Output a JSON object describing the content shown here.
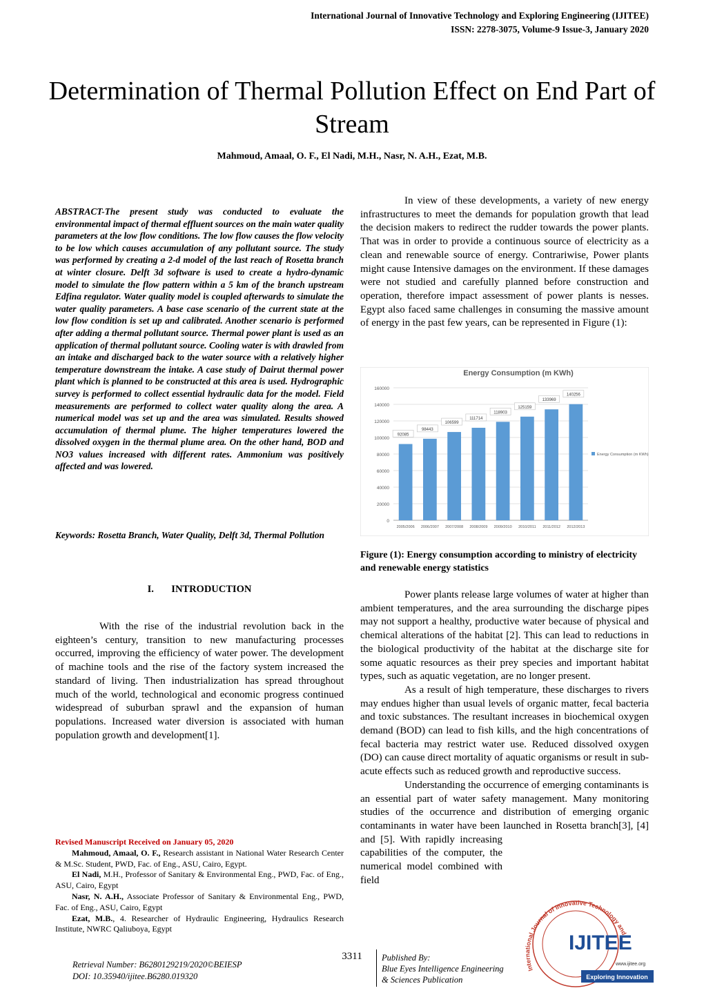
{
  "header": {
    "journal": "International Journal of Innovative Technology and Exploring Engineering (IJITEE)",
    "issn": "ISSN: 2278-3075, Volume-9 Issue-3, January 2020"
  },
  "title": "Determination of Thermal Pollution Effect on End Part of Stream",
  "authors": "Mahmoud, Amaal, O. F., El Nadi, M.H., Nasr, N. A.H., Ezat, M.B.",
  "abstract": "ABSTRACT-The present study was conducted to evaluate the environmental impact of thermal effluent sources on the main water quality parameters at the low flow conditions. The low flow causes the flow velocity to be low which causes accumulation of any pollutant source. The study was performed by creating a 2-d model of the last reach of Rosetta branch at winter closure. Delft 3d software is used to create a hydro-dynamic model to simulate the flow pattern within a 5 km of the branch upstream Edfina regulator. Water quality model is coupled afterwards to simulate the water quality parameters. A base case scenario of the current state at the low flow condition is set up and calibrated. Another scenario is performed after adding a thermal pollutant source. Thermal power plant is used as an application of thermal pollutant source. Cooling water is with drawled from an intake and discharged back to the water source with a relatively higher temperature downstream the intake. A case study of Dairut thermal power plant which is planned to be constructed at this area is used. Hydrographic survey is performed to collect essential hydraulic data for the model. Field measurements are performed to collect water quality along the area. A numerical model was set up and the area was simulated. Results showed accumulation of thermal plume. The higher temperatures lowered the dissolved oxygen in the thermal plume area. On the other hand, BOD and NO3 values increased with different rates. Ammonium was positively affected and was lowered.",
  "keywords": "Keywords: Rosetta Branch, Water Quality, Delft 3d, Thermal Pollution",
  "section_heading": "I.       INTRODUCTION",
  "intro": "With the rise of the industrial revolution back in the eighteen’s century, transition to new manufacturing processes occurred, improving the efficiency of water power. The development of machine tools and the rise of the factory system increased the standard of living. Then industrialization has spread throughout much of the world, technological and economic progress continued widespread of suburban sprawl and the expansion of human populations. Increased water diversion is associated with human population growth and development[1].",
  "right_paragraphs": [
    "In view of these developments, a variety of new energy infrastructures to meet the demands for population growth that lead the decision makers to redirect the rudder towards the power plants. That was in order to provide a continuous source of electricity as a clean and renewable source of energy. Contrariwise, Power plants might cause Intensive damages on the environment. If these damages were not studied and carefully planned before construction and operation, therefore impact assessment of power plants is nesses. Egypt also faced same challenges in consuming the massive amount of energy in the past few years, can be represented in Figure (1):",
    "Power plants release large volumes of water at higher than ambient temperatures, and the area surrounding the discharge pipes may not support a healthy, productive water because of physical and chemical alterations of the habitat [2]. This can lead to reductions in the biological productivity of the habitat at the discharge site for some aquatic resources as their prey species and important habitat types, such as aquatic vegetation, are no longer present.",
    "As a result of high temperature, these discharges to rivers may endues higher than usual levels of organic matter, fecal bacteria and toxic substances. The resultant increases in biochemical oxygen demand (BOD) can lead to fish kills, and the high concentrations of fecal bacteria may restrict water use. Reduced dissolved oxygen (DO) can cause direct mortality of aquatic organisms or result in sub-acute effects such as reduced growth and reproductive success.",
    "Understanding the occurrence of emerging contaminants is an essential part of water safety management. Many monitoring studies of the occurrence and distribution of emerging organic contaminants in water have been launched in Rosetta branch[3], [4] and [5]. With rapidly increasing capabilities of the computer, the numerical model combined with field"
  ],
  "chart_data": {
    "type": "bar",
    "title": "Energy Consumption (m KWh)",
    "categories": [
      "2005/2006",
      "2006/2007",
      "2007/2008",
      "2008/2009",
      "2009/2010",
      "2010/2011",
      "2011/2012",
      "2012/2013"
    ],
    "series": [
      {
        "name": "Energy Consumption (m KWh)",
        "color": "#5b9bd5",
        "values": [
          92085,
          98443,
          106599,
          111714,
          118903,
          125159,
          133969,
          140256
        ]
      }
    ],
    "ylim": [
      0,
      160000
    ],
    "yticks": [
      0,
      20000,
      40000,
      60000,
      80000,
      100000,
      120000,
      140000,
      160000
    ],
    "grid": true,
    "legend": "right"
  },
  "figure_caption": "Figure (1): Energy consumption according to ministry of electricity and renewable energy statistics",
  "footnotes": {
    "received": "Revised Manuscript Received on January 05, 2020",
    "items": [
      {
        "name": "Mahmoud, Amaal, O. F.,",
        "text": " Research assistant in National Water Research Center & M.Sc. Student, PWD, Fac. of Eng., ASU, Cairo, Egypt."
      },
      {
        "name": "El Nadi,",
        "text": " M.H., Professor of Sanitary & Environmental Eng., PWD, Fac. of Eng., ASU, Cairo, Egypt"
      },
      {
        "name": "Nasr, N. A.H.,",
        "text": " Associate Professor of Sanitary & Environmental Eng., PWD, Fac. of Eng., ASU, Cairo, Egypt"
      },
      {
        "name": "Ezat, M.B.",
        "text": ", 4. Researcher of Hydraulic Engineering, Hydraulics Research Institute, NWRC Qaliuboya, Egypt"
      }
    ]
  },
  "footer": {
    "page_number": "3311",
    "retrieval": "Retrieval Number: B6280129219/2020©BEIESP",
    "doi": "DOI: 10.35940/ijitee.B6280.019320",
    "published_by": "Published By:",
    "publisher_1": "Blue Eyes Intelligence Engineering",
    "publisher_2": "& Sciences Publication"
  },
  "logo": {
    "ring": "International Journal of Innovative Technology and Exploring Engineering",
    "name": "IJITEE",
    "url": "www.ijitee.org",
    "tagline": "Exploring Innovation"
  }
}
